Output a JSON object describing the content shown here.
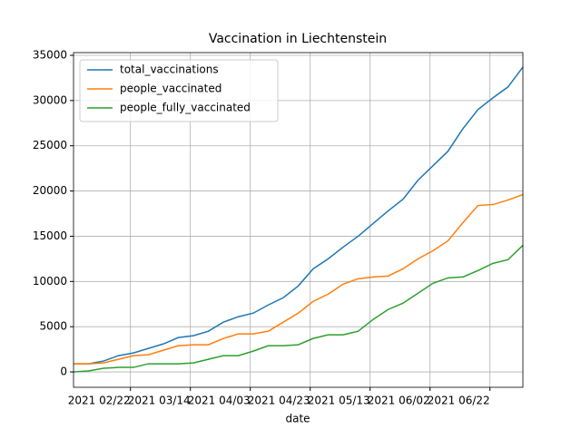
{
  "chart_data": {
    "type": "line",
    "title": "Vaccination in Liechtenstein",
    "xlabel": "date",
    "x": [
      "2021-02-03",
      "2021-02-08",
      "2021-02-13",
      "2021-02-18",
      "2021-02-23",
      "2021-02-28",
      "2021-03-05",
      "2021-03-10",
      "2021-03-15",
      "2021-03-20",
      "2021-03-25",
      "2021-03-30",
      "2021-04-04",
      "2021-04-09",
      "2021-04-14",
      "2021-04-19",
      "2021-04-24",
      "2021-04-29",
      "2021-05-04",
      "2021-05-09",
      "2021-05-14",
      "2021-05-19",
      "2021-05-24",
      "2021-05-29",
      "2021-06-03",
      "2021-06-08",
      "2021-06-13",
      "2021-06-18",
      "2021-06-23",
      "2021-06-28",
      "2021-07-03"
    ],
    "series": [
      {
        "name": "total_vaccinations",
        "color": "#1f77b4",
        "values": [
          900,
          900,
          1200,
          1800,
          2100,
          2600,
          3100,
          3800,
          4000,
          4500,
          5500,
          6100,
          6500,
          7400,
          8200,
          9500,
          11400,
          12500,
          13800,
          15000,
          16400,
          17800,
          19100,
          21200,
          22800,
          24400,
          26900,
          29000,
          30300,
          31500,
          33700
        ]
      },
      {
        "name": "people_vaccinated",
        "color": "#ff7f0e",
        "values": [
          900,
          900,
          1000,
          1400,
          1800,
          1900,
          2400,
          2900,
          3000,
          3000,
          3700,
          4200,
          4200,
          4500,
          5500,
          6500,
          7800,
          8600,
          9700,
          10300,
          10500,
          10600,
          11400,
          12500,
          13400,
          14500,
          16500,
          18400,
          18500,
          19000,
          19600
        ]
      },
      {
        "name": "people_fully_vaccinated",
        "color": "#2ca02c",
        "values": [
          0,
          100,
          400,
          500,
          500,
          900,
          900,
          900,
          1000,
          1400,
          1800,
          1800,
          2300,
          2900,
          2900,
          3000,
          3700,
          4100,
          4100,
          4500,
          5800,
          6900,
          7600,
          8700,
          9800,
          10400,
          10500,
          11200,
          12000,
          12400,
          14000
        ]
      }
    ],
    "xlim": [
      "2021-02-03",
      "2021-07-03"
    ],
    "xticks": [
      {
        "value": "2021-02-22",
        "label": "2021 02/22"
      },
      {
        "value": "2021-03-14",
        "label": "2021 03/14"
      },
      {
        "value": "2021-04-03",
        "label": "2021 04/03"
      },
      {
        "value": "2021-04-23",
        "label": "2021 04/23"
      },
      {
        "value": "2021-05-13",
        "label": "2021 05/13"
      },
      {
        "value": "2021-06-02",
        "label": "2021 06/02"
      },
      {
        "value": "2021-06-22",
        "label": "2021 06/22"
      }
    ],
    "ylim": [
      -1700,
      35300
    ],
    "yticks": [
      0,
      5000,
      10000,
      15000,
      20000,
      25000,
      30000,
      35000
    ],
    "grid": true,
    "legend": "upper left"
  }
}
